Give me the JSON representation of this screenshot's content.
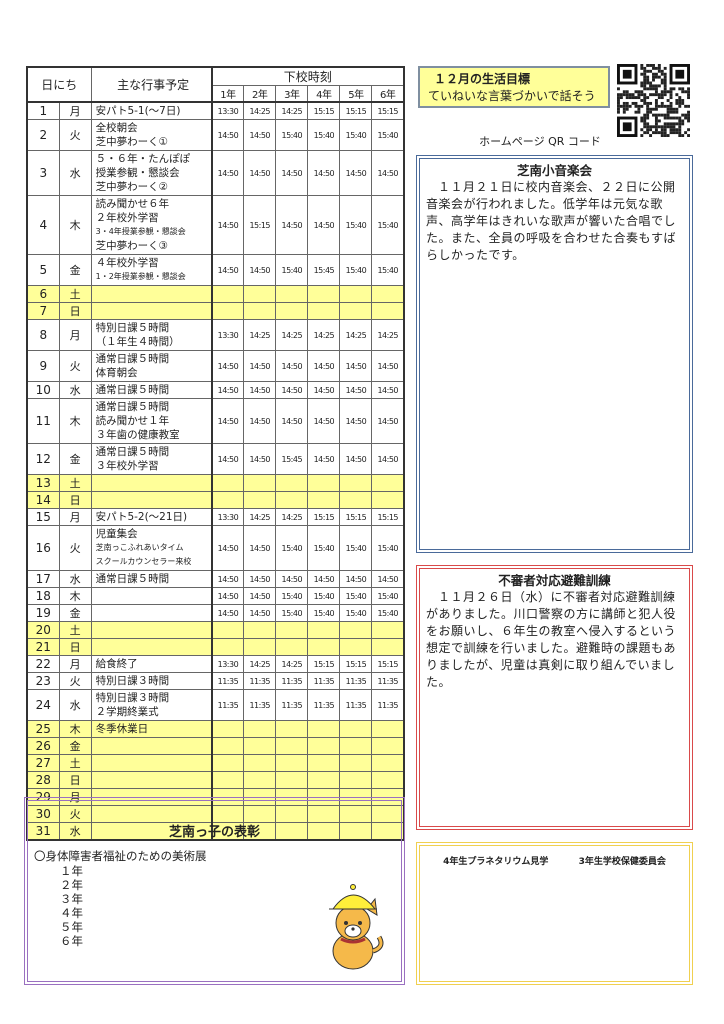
{
  "schedule": {
    "headers": {
      "date": "日にち",
      "events": "主な行事予定",
      "dismissal": "下校時刻",
      "grades": [
        "1年",
        "2年",
        "3年",
        "4年",
        "5年",
        "6年"
      ]
    },
    "rows": [
      {
        "day": "1",
        "dow": "月",
        "events": [
          {
            "t": "安パト5-1(〜7日)"
          }
        ],
        "times": [
          "13:30",
          "14:25",
          "14:25",
          "15:15",
          "15:15",
          "15:15"
        ]
      },
      {
        "day": "2",
        "dow": "火",
        "events": [
          {
            "t": "全校朝会"
          },
          {
            "t": "芝中夢わーく①"
          }
        ],
        "times": [
          "14:50",
          "14:50",
          "15:40",
          "15:40",
          "15:40",
          "15:40"
        ]
      },
      {
        "day": "3",
        "dow": "水",
        "events": [
          {
            "t": "５・６年・たんぽぽ"
          },
          {
            "t": "授業参観・懇談会"
          },
          {
            "t": "芝中夢わーく②"
          }
        ],
        "times": [
          "14:50",
          "14:50",
          "14:50",
          "14:50",
          "14:50",
          "14:50"
        ]
      },
      {
        "day": "4",
        "dow": "木",
        "events": [
          {
            "t": "読み聞かせ６年"
          },
          {
            "t": "２年校外学習"
          },
          {
            "t": "3・4年授業参観・懇談会",
            "small": true
          },
          {
            "t": "芝中夢わーく③"
          }
        ],
        "times": [
          "14:50",
          "15:15",
          "14:50",
          "14:50",
          "15:40",
          "15:40"
        ]
      },
      {
        "day": "5",
        "dow": "金",
        "events": [
          {
            "t": "４年校外学習"
          },
          {
            "t": "1・2年授業参観・懇談会",
            "small": true
          }
        ],
        "times": [
          "14:50",
          "14:50",
          "15:40",
          "15:45",
          "15:40",
          "15:40"
        ]
      },
      {
        "day": "6",
        "dow": "土",
        "holiday": true,
        "events": [],
        "times": []
      },
      {
        "day": "7",
        "dow": "日",
        "holiday": true,
        "events": [],
        "times": []
      },
      {
        "day": "8",
        "dow": "月",
        "events": [
          {
            "t": "特別日課５時間"
          },
          {
            "t": "（１年生４時間）"
          }
        ],
        "times": [
          "13:30",
          "14:25",
          "14:25",
          "14:25",
          "14:25",
          "14:25"
        ]
      },
      {
        "day": "9",
        "dow": "火",
        "events": [
          {
            "t": "通常日課５時間"
          },
          {
            "t": "体育朝会"
          }
        ],
        "times": [
          "14:50",
          "14:50",
          "14:50",
          "14:50",
          "14:50",
          "14:50"
        ]
      },
      {
        "day": "10",
        "dow": "水",
        "events": [
          {
            "t": "通常日課５時間"
          }
        ],
        "times": [
          "14:50",
          "14:50",
          "14:50",
          "14:50",
          "14:50",
          "14:50"
        ]
      },
      {
        "day": "11",
        "dow": "木",
        "events": [
          {
            "t": "通常日課５時間"
          },
          {
            "t": "読み聞かせ１年"
          },
          {
            "t": "３年歯の健康教室"
          }
        ],
        "times": [
          "14:50",
          "14:50",
          "14:50",
          "14:50",
          "14:50",
          "14:50"
        ]
      },
      {
        "day": "12",
        "dow": "金",
        "events": [
          {
            "t": "通常日課５時間"
          },
          {
            "t": "３年校外学習"
          }
        ],
        "times": [
          "14:50",
          "14:50",
          "15:45",
          "14:50",
          "14:50",
          "14:50"
        ]
      },
      {
        "day": "13",
        "dow": "土",
        "holiday": true,
        "events": [],
        "times": []
      },
      {
        "day": "14",
        "dow": "日",
        "holiday": true,
        "events": [],
        "times": []
      },
      {
        "day": "15",
        "dow": "月",
        "events": [
          {
            "t": "安パト5-2(〜21日)"
          }
        ],
        "times": [
          "13:30",
          "14:25",
          "14:25",
          "15:15",
          "15:15",
          "15:15"
        ]
      },
      {
        "day": "16",
        "dow": "火",
        "events": [
          {
            "t": "児童集会"
          },
          {
            "t": "芝南っこふれあいタイム",
            "small": true
          },
          {
            "t": "スクールカウンセラー来校",
            "small": true
          }
        ],
        "times": [
          "14:50",
          "14:50",
          "15:40",
          "15:40",
          "15:40",
          "15:40"
        ]
      },
      {
        "day": "17",
        "dow": "水",
        "events": [
          {
            "t": "通常日課５時間"
          }
        ],
        "times": [
          "14:50",
          "14:50",
          "14:50",
          "14:50",
          "14:50",
          "14:50"
        ]
      },
      {
        "day": "18",
        "dow": "木",
        "events": [],
        "times": [
          "14:50",
          "14:50",
          "15:40",
          "15:40",
          "15:40",
          "15:40"
        ]
      },
      {
        "day": "19",
        "dow": "金",
        "events": [],
        "times": [
          "14:50",
          "14:50",
          "15:40",
          "15:40",
          "15:40",
          "15:40"
        ]
      },
      {
        "day": "20",
        "dow": "土",
        "holiday": true,
        "events": [],
        "times": []
      },
      {
        "day": "21",
        "dow": "日",
        "holiday": true,
        "events": [],
        "times": []
      },
      {
        "day": "22",
        "dow": "月",
        "events": [
          {
            "t": "給食終了"
          }
        ],
        "times": [
          "13:30",
          "14:25",
          "14:25",
          "15:15",
          "15:15",
          "15:15"
        ]
      },
      {
        "day": "23",
        "dow": "火",
        "events": [
          {
            "t": "特別日課３時間"
          }
        ],
        "times": [
          "11:35",
          "11:35",
          "11:35",
          "11:35",
          "11:35",
          "11:35"
        ]
      },
      {
        "day": "24",
        "dow": "水",
        "events": [
          {
            "t": "特別日課３時間"
          },
          {
            "t": "２学期終業式"
          }
        ],
        "times": [
          "11:35",
          "11:35",
          "11:35",
          "11:35",
          "11:35",
          "11:35"
        ]
      },
      {
        "day": "25",
        "dow": "木",
        "holiday": true,
        "events": [
          {
            "t": "冬季休業日"
          }
        ],
        "times": []
      },
      {
        "day": "26",
        "dow": "金",
        "holiday": true,
        "events": [],
        "times": []
      },
      {
        "day": "27",
        "dow": "土",
        "holiday": true,
        "events": [],
        "times": []
      },
      {
        "day": "28",
        "dow": "日",
        "holiday": true,
        "events": [],
        "times": []
      },
      {
        "day": "29",
        "dow": "月",
        "holiday": true,
        "events": [],
        "times": []
      },
      {
        "day": "30",
        "dow": "火",
        "holiday": true,
        "events": [],
        "times": []
      },
      {
        "day": "31",
        "dow": "水",
        "holiday": true,
        "events": [],
        "times": []
      }
    ]
  },
  "goal": {
    "title": "１２月の生活目標",
    "text": "ていねいな言葉づかいで話そう"
  },
  "qr": {
    "caption": "ホームページ QR コード"
  },
  "music": {
    "title": "芝南小音楽会",
    "text": "１１月２１日に校内音楽会、２２日に公開音楽会が行われました。低学年は元気な歌声、高学年はきれいな歌声が響いた合唱でした。また、全員の呼吸を合わせた合奏もすばらしかったです。"
  },
  "drill": {
    "title": "不審者対応避難訓練",
    "text": "１１月２６日（水）に不審者対応避難訓練がありました。川口警察の方に講師と犯人役をお願いし、６年生の教室へ侵入するという想定で訓練を行いました。避難時の課題もありましたが、児童は真剣に取り組んでいました。"
  },
  "photos": {
    "captions": [
      "4年生プラネタリウム見学",
      "3年生学校保健委員会"
    ]
  },
  "award": {
    "title": "芝南っ子の表彰",
    "item": "〇身体障害者福祉のための美術展",
    "grades": [
      "１年",
      "２年",
      "３年",
      "４年",
      "５年",
      "６年"
    ]
  },
  "colors": {
    "holiday": "#ffff99",
    "music_border": "#4a6a9a",
    "drill_border": "#d94a4a",
    "photo_border": "#f0d050",
    "award_border": "#9a70c0"
  }
}
